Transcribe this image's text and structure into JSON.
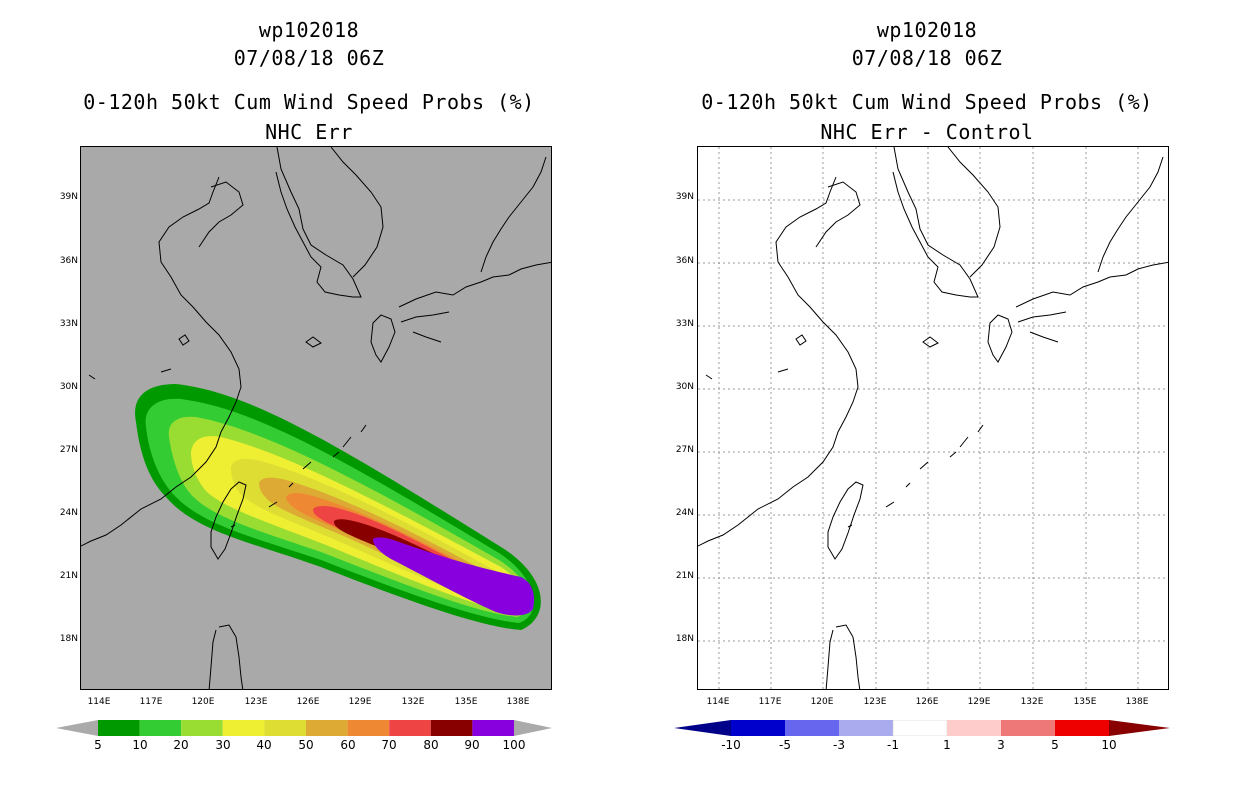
{
  "left": {
    "title_id": "wp102018",
    "title_date": "07/08/18 06Z",
    "title_product": "0-120h 50kt Cum Wind Speed Probs (%)",
    "title_variant": "NHC Err",
    "legend_labels": [
      "5",
      "10",
      "20",
      "30",
      "40",
      "50",
      "60",
      "70",
      "80",
      "90",
      "100"
    ],
    "legend_colors": [
      "#009900",
      "#33cc33",
      "#99dd33",
      "#eeee33",
      "#dddd33",
      "#ddaa33",
      "#ee8833",
      "#ee4444",
      "#880000",
      "#8800dd"
    ]
  },
  "right": {
    "title_id": "wp102018",
    "title_date": "07/08/18 06Z",
    "title_product": "0-120h 50kt Cum Wind Speed Probs (%)",
    "title_variant": "NHC Err - Control",
    "legend_labels": [
      "-10",
      "-5",
      "-3",
      "-1",
      "1",
      "3",
      "5",
      "10"
    ],
    "legend_colors": [
      "#0000cc",
      "#6666ee",
      "#aaaaee",
      "#ffffff",
      "#ffcccc",
      "#ee7777",
      "#ee0000",
      "#880000"
    ]
  },
  "lat_labels": [
    "39N",
    "36N",
    "33N",
    "30N",
    "27N",
    "24N",
    "21N",
    "18N"
  ],
  "lon_labels": [
    "114E",
    "117E",
    "120E",
    "123E",
    "126E",
    "129E",
    "132E",
    "135E",
    "138E"
  ]
}
